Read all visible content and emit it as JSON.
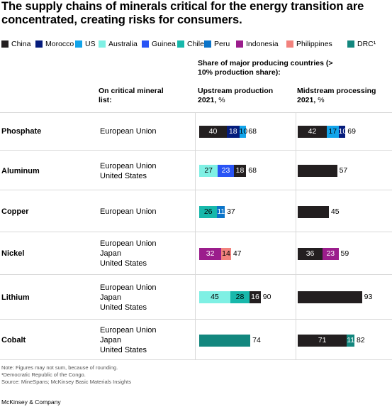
{
  "title": "The supply chains of minerals critical for the energy transition are concentrated, creating risks for consumers.",
  "legend": [
    {
      "name": "China",
      "color": "#231f20"
    },
    {
      "name": "Morocco",
      "color": "#051c7c"
    },
    {
      "name": "US",
      "color": "#12a4ea"
    },
    {
      "name": "Australia",
      "color": "#7ff0e4"
    },
    {
      "name": "Guinea",
      "color": "#2954f5"
    },
    {
      "name": "Chile",
      "color": "#18b8ab"
    },
    {
      "name": "Peru",
      "color": "#0b74c9"
    },
    {
      "name": "Indonesia",
      "color": "#9b1d8c"
    },
    {
      "name": "Philippines",
      "color": "#f2827d"
    },
    {
      "name": "DRC¹",
      "color": "#13877e"
    }
  ],
  "headers": {
    "list_col": "On critical mineral list:",
    "share_title": "Share of major producing countries (> 10% production share):",
    "upstream_bold": "Upstream production 2021,",
    "upstream_unit": " %",
    "midstream_bold": "Midstream processing 2021,",
    "midstream_unit": " %"
  },
  "chart_data": {
    "type": "bar",
    "orientation": "horizontal",
    "stacked": true,
    "title": "The supply chains of minerals critical for the energy transition are concentrated, creating risks for consumers.",
    "xlim": [
      0,
      100
    ],
    "rows": [
      {
        "mineral": "Phosphate",
        "lists": [
          "European Union"
        ],
        "upstream": {
          "segments": [
            {
              "country": "China",
              "value": 40
            },
            {
              "country": "Morocco",
              "value": 18
            },
            {
              "country": "US",
              "value": 10
            }
          ],
          "total": 68
        },
        "midstream": {
          "segments": [
            {
              "country": "China",
              "value": 42
            },
            {
              "country": "US",
              "value": 17
            },
            {
              "country": "Morocco",
              "value": 10
            }
          ],
          "total": 69
        }
      },
      {
        "mineral": "Aluminum",
        "lists": [
          "European Union",
          "United States"
        ],
        "upstream": {
          "segments": [
            {
              "country": "Australia",
              "value": 27
            },
            {
              "country": "Guinea",
              "value": 23
            },
            {
              "country": "China",
              "value": 18
            }
          ],
          "total": 68
        },
        "midstream": {
          "segments": [
            {
              "country": "China",
              "value": 57,
              "label": ""
            }
          ],
          "total": 57
        }
      },
      {
        "mineral": "Copper",
        "lists": [
          "European Union"
        ],
        "upstream": {
          "segments": [
            {
              "country": "Chile",
              "value": 26
            },
            {
              "country": "Peru",
              "value": 11
            }
          ],
          "total": 37
        },
        "midstream": {
          "segments": [
            {
              "country": "China",
              "value": 45,
              "label": ""
            }
          ],
          "total": 45
        }
      },
      {
        "mineral": "Nickel",
        "lists": [
          "European Union",
          "Japan",
          "United States"
        ],
        "upstream": {
          "segments": [
            {
              "country": "Indonesia",
              "value": 32
            },
            {
              "country": "Philippines",
              "value": 14
            }
          ],
          "total": 47
        },
        "midstream": {
          "segments": [
            {
              "country": "China",
              "value": 36
            },
            {
              "country": "Indonesia",
              "value": 23
            }
          ],
          "total": 59
        }
      },
      {
        "mineral": "Lithium",
        "lists": [
          "European Union",
          "Japan",
          "United States"
        ],
        "upstream": {
          "segments": [
            {
              "country": "Australia",
              "value": 45
            },
            {
              "country": "Chile",
              "value": 28
            },
            {
              "country": "China",
              "value": 16
            }
          ],
          "total": 90
        },
        "midstream": {
          "segments": [
            {
              "country": "China",
              "value": 93,
              "label": ""
            }
          ],
          "total": 93
        }
      },
      {
        "mineral": "Cobalt",
        "lists": [
          "European Union",
          "Japan",
          "United States"
        ],
        "upstream": {
          "segments": [
            {
              "country": "DRC¹",
              "value": 74,
              "label": ""
            }
          ],
          "total": 74
        },
        "midstream": {
          "segments": [
            {
              "country": "China",
              "value": 71
            },
            {
              "country": "DRC¹",
              "value": 11
            }
          ],
          "total": 82
        }
      }
    ]
  },
  "notes": [
    "Note: Figures may not sum, because of rounding.",
    "¹Democratic Republic of the Congo.",
    "Source: MineSpans; McKinsey Basic Materials Insights"
  ],
  "footer": "McKinsey & Company"
}
